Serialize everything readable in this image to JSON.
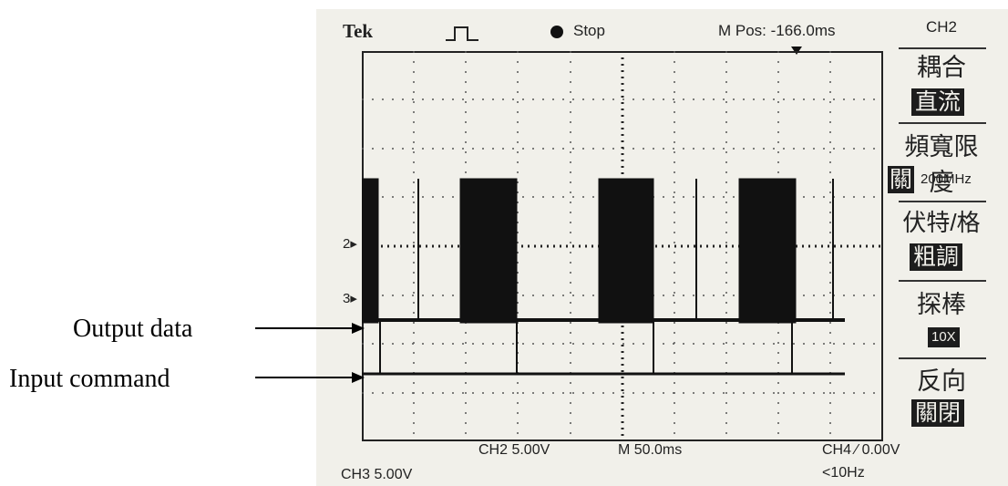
{
  "header": {
    "brand": "Tek",
    "trigger_state": "Stop",
    "m_pos": "M Pos: -166.0ms"
  },
  "menu": {
    "channel": "CH2",
    "items": [
      {
        "label": "耦合",
        "value": "直流"
      },
      {
        "label": "頻寬限度",
        "value": "關",
        "extra": "200MHz"
      },
      {
        "label": "伏特/格",
        "value": "粗調"
      },
      {
        "label": "探棒",
        "value": "10X"
      },
      {
        "label": "反向",
        "value": "關閉"
      }
    ]
  },
  "status": {
    "ch2_scale": "CH2  5.00V",
    "time_base": "M 50.0ms",
    "ch4_trigger": "CH4 ⁄ 0.00V",
    "ch3_scale": "CH3  5.00V",
    "freq": "<10Hz"
  },
  "markers": {
    "ch2": "2",
    "ch3": "3"
  },
  "annotations": {
    "output": "Output data",
    "input": "Input command"
  },
  "colors": {
    "screen": "#f1f0ea",
    "trace": "#111111"
  }
}
